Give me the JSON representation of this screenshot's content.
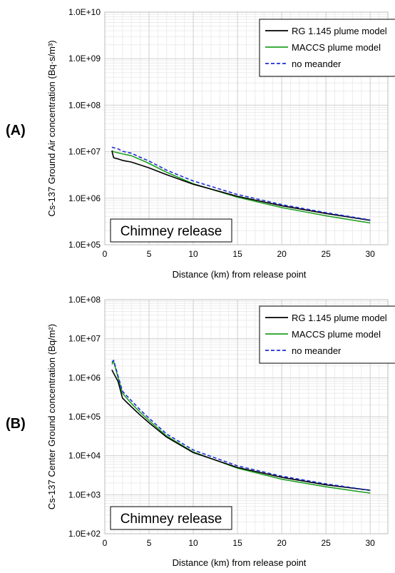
{
  "panels": {
    "a_label": "(A)",
    "b_label": "(B)"
  },
  "chart_data": [
    {
      "type": "line",
      "panel": "(A)",
      "xlabel": "Distance (km) from release point",
      "ylabel": "Cs-137 Ground Air concentration (Bq·s/m³)",
      "yscale": "log",
      "xlim": [
        0,
        32
      ],
      "ylim": [
        100000,
        10000000000
      ],
      "xticks": [
        0,
        5,
        10,
        15,
        20,
        25,
        30
      ],
      "yticks": [
        "1.0E+05",
        "1.0E+06",
        "1.0E+07",
        "1.0E+08",
        "1.0E+09",
        "1.0E+10"
      ],
      "grid": true,
      "legend_position": "top-right",
      "annotation": "Chimney release",
      "series": [
        {
          "name": "RG 1.145 plume model",
          "color": "#000000",
          "dash": "solid",
          "x": [
            0.8,
            1,
            1.5,
            2,
            3,
            4,
            5,
            7,
            10,
            15,
            20,
            25,
            30
          ],
          "y": [
            10500000,
            7400000,
            7000000,
            6500000,
            6000000,
            5200000,
            4500000,
            3200000,
            2000000,
            1100000,
            690000,
            470000,
            335000
          ]
        },
        {
          "name": "MACCS plume model",
          "color": "#22a022",
          "dash": "solid",
          "x": [
            0.8,
            1,
            1.5,
            2,
            3,
            4,
            5,
            7,
            10,
            15,
            20,
            25,
            30
          ],
          "y": [
            10500000,
            10000000,
            9500000,
            9000000,
            8200000,
            6800000,
            5600000,
            3600000,
            2050000,
            1050000,
            630000,
            420000,
            295000
          ]
        },
        {
          "name": "no meander",
          "color": "#1c2fd6",
          "dash": "dashed",
          "x": [
            0.8,
            1,
            1.5,
            2,
            3,
            4,
            5,
            7,
            10,
            15,
            20,
            25,
            30
          ],
          "y": [
            12500000,
            12200000,
            11500000,
            10200000,
            9300000,
            7600000,
            6300000,
            4000000,
            2350000,
            1200000,
            730000,
            490000,
            340000
          ]
        }
      ]
    },
    {
      "type": "line",
      "panel": "(B)",
      "xlabel": "Distance (km) from release point",
      "ylabel": "Cs-137 Center Ground concentration (Bq/m²)",
      "yscale": "log",
      "xlim": [
        0,
        32
      ],
      "ylim": [
        100,
        100000000
      ],
      "xticks": [
        0,
        5,
        10,
        15,
        20,
        25,
        30
      ],
      "yticks": [
        "1.0E+02",
        "1.0E+03",
        "1.0E+04",
        "1.0E+05",
        "1.0E+06",
        "1.0E+07",
        "1.0E+08"
      ],
      "grid": true,
      "legend_position": "top-right",
      "annotation": "Chimney release",
      "series": [
        {
          "name": "RG 1.145 plume model",
          "color": "#000000",
          "dash": "solid",
          "x": [
            0.8,
            1,
            1.5,
            2,
            3,
            4,
            5,
            7,
            10,
            15,
            20,
            25,
            30
          ],
          "y": [
            1600000,
            1300000,
            800000,
            300000,
            180000,
            110000,
            70000,
            30000,
            12000,
            5000,
            2800,
            1800,
            1300
          ]
        },
        {
          "name": "MACCS plume model",
          "color": "#22a022",
          "dash": "solid",
          "x": [
            0.8,
            1,
            1.5,
            2,
            3,
            4,
            5,
            7,
            10,
            15,
            20,
            25,
            30
          ],
          "y": [
            2200000,
            2600000,
            1000000,
            400000,
            220000,
            130000,
            80000,
            32000,
            12500,
            4800,
            2500,
            1600,
            1100
          ]
        },
        {
          "name": "no meander",
          "color": "#1c2fd6",
          "dash": "dashed",
          "x": [
            0.8,
            1,
            1.5,
            2,
            3,
            4,
            5,
            7,
            10,
            15,
            20,
            25,
            30
          ],
          "y": [
            2500000,
            2800000,
            1100000,
            450000,
            260000,
            150000,
            92000,
            36000,
            14000,
            5500,
            3000,
            1900,
            1300
          ]
        }
      ]
    }
  ]
}
